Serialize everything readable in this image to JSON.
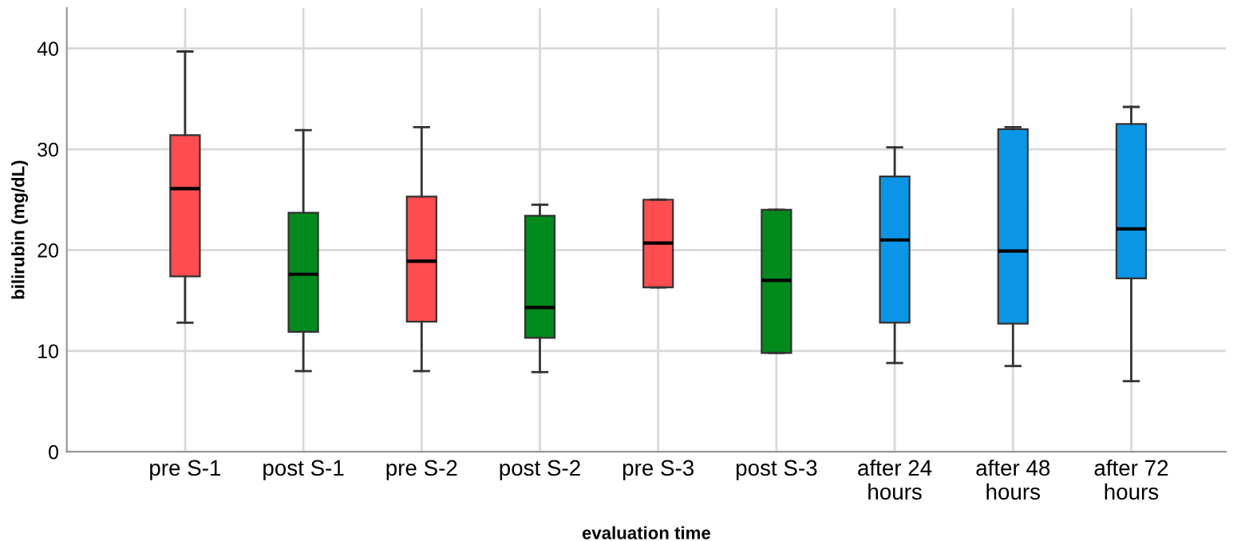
{
  "chart_data": {
    "type": "box",
    "xlabel": "evaluation time",
    "ylabel": "bilirubin (mg/dL)",
    "categories": [
      "pre S-1",
      "post S-1",
      "pre S-2",
      "post S-2",
      "pre S-3",
      "post S-3",
      "after 24\nhours",
      "after 48\nhours",
      "after 72\nhours"
    ],
    "colors": [
      "#ff4d4f",
      "#008a1c",
      "#ff4d4f",
      "#008a1c",
      "#ff4d4f",
      "#008a1c",
      "#0a96e6",
      "#0a96e6",
      "#0a96e6"
    ],
    "boxes": [
      {
        "low": 12.8,
        "q1": 17.4,
        "median": 26.1,
        "q3": 31.4,
        "high": 39.7
      },
      {
        "low": 8.0,
        "q1": 11.9,
        "median": 17.6,
        "q3": 23.7,
        "high": 31.9
      },
      {
        "low": 8.0,
        "q1": 12.9,
        "median": 18.9,
        "q3": 25.3,
        "high": 32.2
      },
      {
        "low": 7.9,
        "q1": 11.3,
        "median": 14.3,
        "q3": 23.4,
        "high": 24.5
      },
      {
        "low": 16.3,
        "q1": 16.3,
        "median": 20.7,
        "q3": 25.0,
        "high": 25.0
      },
      {
        "low": 9.8,
        "q1": 9.8,
        "median": 17.0,
        "q3": 24.0,
        "high": 24.0
      },
      {
        "low": 8.8,
        "q1": 12.8,
        "median": 21.0,
        "q3": 27.3,
        "high": 30.2
      },
      {
        "low": 8.5,
        "q1": 12.7,
        "median": 19.9,
        "q3": 32.0,
        "high": 32.2
      },
      {
        "low": 7.0,
        "q1": 17.2,
        "median": 22.1,
        "q3": 32.5,
        "high": 34.2
      }
    ],
    "ylim": [
      0,
      44
    ],
    "yticks": [
      0,
      10,
      20,
      30,
      40
    ],
    "grid": true
  }
}
